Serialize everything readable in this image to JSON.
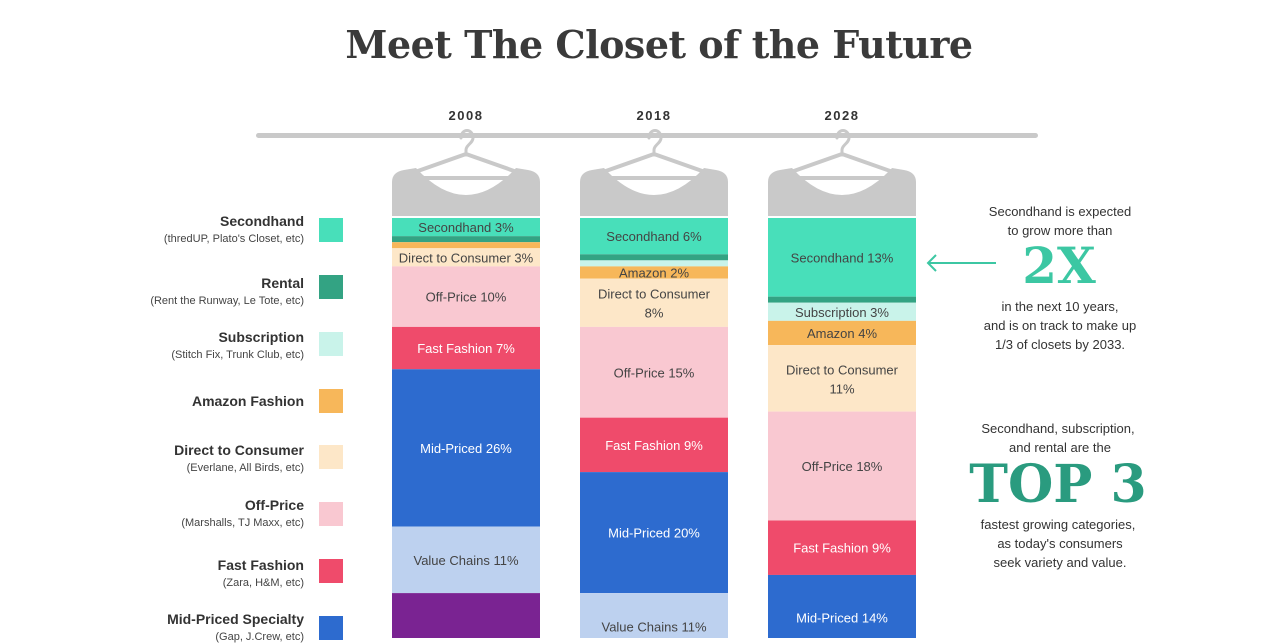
{
  "title": "Meet The Closet of the Future",
  "colors": {
    "secondhand": "#48dfba",
    "rental": "#33a383",
    "subscription": "#c9f3ea",
    "amazon": "#f7b75a",
    "dtc": "#fde7c8",
    "offprice": "#f9c8d1",
    "fast": "#ef4b6b",
    "mid": "#2d6bcf",
    "value": "#bdd1ef",
    "purple": "#7a2392",
    "hanger": "#c9c9c9",
    "accent": "#3cc7a3",
    "accent_dark": "#2a9b7f"
  },
  "legend": [
    {
      "name": "Secondhand",
      "sub": "(thredUP, Plato's Closet, etc)",
      "color": "#48dfba"
    },
    {
      "name": "Rental",
      "sub": "(Rent the Runway, Le Tote, etc)",
      "color": "#33a383"
    },
    {
      "name": "Subscription",
      "sub": "(Stitch Fix, Trunk Club, etc)",
      "color": "#c9f3ea"
    },
    {
      "name": "Amazon Fashion",
      "sub": "",
      "color": "#f7b75a"
    },
    {
      "name": "Direct to Consumer",
      "sub": "(Everlane, All Birds, etc)",
      "color": "#fde7c8"
    },
    {
      "name": "Off-Price",
      "sub": "(Marshalls, TJ Maxx, etc)",
      "color": "#f9c8d1"
    },
    {
      "name": "Fast Fashion",
      "sub": "(Zara, H&M, etc)",
      "color": "#ef4b6b"
    },
    {
      "name": "Mid-Priced Specialty",
      "sub": "(Gap, J.Crew, etc)",
      "color": "#2d6bcf"
    }
  ],
  "chart_data": {
    "type": "bar",
    "stacked": true,
    "categories": [
      "2008",
      "2018",
      "2028"
    ],
    "unit": "%",
    "stacks": [
      {
        "year": "2008",
        "segments": [
          {
            "label": "Secondhand 3%",
            "category": "Secondhand",
            "value": 3,
            "color": "#48dfba"
          },
          {
            "label": "",
            "category": "Rental",
            "value": 1,
            "color": "#33a383"
          },
          {
            "label": "",
            "category": "Amazon Fashion",
            "value": 1,
            "color": "#f7b75a"
          },
          {
            "label": "Direct to Consumer 3%",
            "category": "Direct to Consumer",
            "value": 3,
            "color": "#fde7c8"
          },
          {
            "label": "Off-Price 10%",
            "category": "Off-Price",
            "value": 10,
            "color": "#f9c8d1"
          },
          {
            "label": "Fast Fashion 7%",
            "category": "Fast Fashion",
            "value": 7,
            "color": "#ef4b6b"
          },
          {
            "label": "Mid-Priced 26%",
            "category": "Mid-Priced Specialty",
            "value": 26,
            "color": "#2d6bcf"
          },
          {
            "label": "Value Chains 11%",
            "category": "Value Chains",
            "value": 11,
            "color": "#bdd1ef"
          },
          {
            "label": "",
            "category": "",
            "value": 12,
            "color": "#7a2392"
          }
        ]
      },
      {
        "year": "2018",
        "segments": [
          {
            "label": "Secondhand 6%",
            "category": "Secondhand",
            "value": 6,
            "color": "#48dfba"
          },
          {
            "label": "",
            "category": "Rental",
            "value": 1,
            "color": "#33a383"
          },
          {
            "label": "",
            "category": "Subscription",
            "value": 1,
            "color": "#c9f3ea"
          },
          {
            "label": "Amazon 2%",
            "category": "Amazon Fashion",
            "value": 2,
            "color": "#f7b75a"
          },
          {
            "label": "Direct to Consumer 8%",
            "category": "Direct to Consumer",
            "value": 8,
            "color": "#fde7c8"
          },
          {
            "label": "Off-Price 15%",
            "category": "Off-Price",
            "value": 15,
            "color": "#f9c8d1"
          },
          {
            "label": "Fast Fashion 9%",
            "category": "Fast Fashion",
            "value": 9,
            "color": "#ef4b6b"
          },
          {
            "label": "Mid-Priced 20%",
            "category": "Mid-Priced Specialty",
            "value": 20,
            "color": "#2d6bcf"
          },
          {
            "label": "Value Chains 11%",
            "category": "Value Chains",
            "value": 11,
            "color": "#bdd1ef"
          }
        ]
      },
      {
        "year": "2028",
        "segments": [
          {
            "label": "Secondhand 13%",
            "category": "Secondhand",
            "value": 13,
            "color": "#48dfba"
          },
          {
            "label": "",
            "category": "Rental",
            "value": 1,
            "color": "#33a383"
          },
          {
            "label": "Subscription 3%",
            "category": "Subscription",
            "value": 3,
            "color": "#c9f3ea"
          },
          {
            "label": "Amazon 4%",
            "category": "Amazon Fashion",
            "value": 4,
            "color": "#f7b75a"
          },
          {
            "label": "Direct to Consumer 11%",
            "category": "Direct to Consumer",
            "value": 11,
            "color": "#fde7c8"
          },
          {
            "label": "Off-Price 18%",
            "category": "Off-Price",
            "value": 18,
            "color": "#f9c8d1"
          },
          {
            "label": "Fast Fashion 9%",
            "category": "Fast Fashion",
            "value": 9,
            "color": "#ef4b6b"
          },
          {
            "label": "Mid-Priced 14%",
            "category": "Mid-Priced Specialty",
            "value": 14,
            "color": "#2d6bcf"
          }
        ]
      }
    ]
  },
  "callout1": {
    "line1": "Secondhand is expected",
    "line2": "to grow more than",
    "big": "2X",
    "line3": "in the next 10 years,",
    "line4": "and is on track to make up",
    "line5": "1/3 of closets by 2033."
  },
  "callout2": {
    "line1": "Secondhand, subscription,",
    "line2": "and rental are the",
    "big": "TOP 3",
    "line3": "fastest growing categories,",
    "line4": "as today's consumers",
    "line5": "seek variety and value."
  }
}
